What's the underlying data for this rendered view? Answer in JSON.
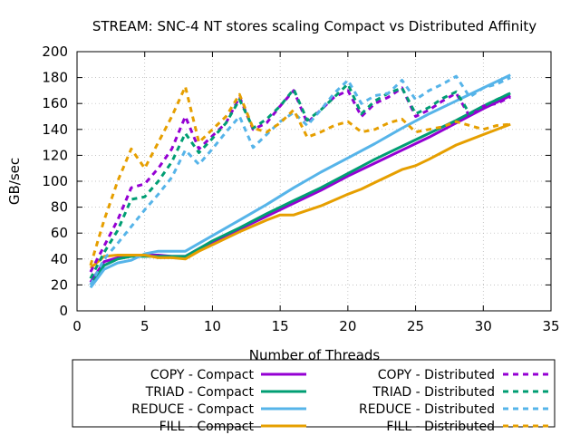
{
  "chart_data": {
    "type": "line",
    "title": "STREAM: SNC-4 NT stores scaling Compact vs Distributed Affinity",
    "xlabel": "Number of Threads",
    "ylabel": "GB/sec",
    "xlim": [
      0,
      35
    ],
    "ylim": [
      0,
      200
    ],
    "xticks": [
      0,
      5,
      10,
      15,
      20,
      25,
      30,
      35
    ],
    "yticks": [
      0,
      20,
      40,
      60,
      80,
      100,
      120,
      140,
      160,
      180,
      200
    ],
    "grid": true,
    "legend_position": "bottom",
    "series": [
      {
        "name": "COPY - Compact",
        "color": "#9400d3",
        "style": "solid",
        "x": [
          1,
          2,
          3,
          4,
          5,
          6,
          7,
          8,
          9,
          10,
          12,
          14,
          16,
          18,
          20,
          22,
          24,
          26,
          28,
          30,
          32
        ],
        "y": [
          22,
          38,
          41,
          43,
          43,
          43,
          42,
          42,
          48,
          53,
          63,
          73,
          83,
          93,
          104,
          114,
          124,
          134,
          145,
          156,
          166
        ]
      },
      {
        "name": "TRIAD - Compact",
        "color": "#009e73",
        "style": "solid",
        "x": [
          1,
          2,
          3,
          4,
          5,
          6,
          7,
          8,
          9,
          10,
          12,
          14,
          16,
          18,
          20,
          22,
          24,
          26,
          28,
          30,
          32
        ],
        "y": [
          20,
          35,
          40,
          42,
          42,
          42,
          42,
          42,
          48,
          54,
          64,
          75,
          85,
          95,
          106,
          117,
          127,
          137,
          147,
          158,
          168
        ]
      },
      {
        "name": "REDUCE - Compact",
        "color": "#56b4e9",
        "style": "solid",
        "x": [
          1,
          2,
          3,
          4,
          5,
          6,
          7,
          8,
          9,
          10,
          12,
          14,
          16,
          18,
          20,
          22,
          24,
          26,
          28,
          30,
          32
        ],
        "y": [
          18,
          32,
          37,
          39,
          44,
          46,
          46,
          46,
          52,
          58,
          70,
          82,
          95,
          107,
          118,
          129,
          141,
          152,
          162,
          172,
          182
        ]
      },
      {
        "name": "FILL - Compact",
        "color": "#e69f00",
        "style": "solid",
        "x": [
          1,
          2,
          3,
          4,
          5,
          6,
          7,
          8,
          9,
          10,
          12,
          14,
          15,
          16,
          18,
          20,
          21,
          22,
          24,
          25,
          26,
          28,
          30,
          32
        ],
        "y": [
          33,
          42,
          43,
          43,
          43,
          41,
          41,
          40,
          46,
          51,
          61,
          70,
          74,
          74,
          81,
          90,
          94,
          99,
          109,
          112,
          117,
          128,
          136,
          144
        ]
      },
      {
        "name": "COPY - Distributed",
        "color": "#9400d3",
        "style": "dashed",
        "x": [
          1,
          2,
          3,
          4,
          5,
          6,
          7,
          8,
          9,
          10,
          11,
          12,
          13,
          14,
          15,
          16,
          17,
          18,
          19,
          20,
          21,
          22,
          23,
          24,
          25,
          26,
          27,
          28,
          29,
          30,
          31,
          32
        ],
        "y": [
          30,
          50,
          70,
          95,
          98,
          110,
          125,
          150,
          125,
          135,
          145,
          165,
          140,
          145,
          158,
          170,
          145,
          155,
          165,
          170,
          150,
          160,
          165,
          172,
          150,
          155,
          162,
          168,
          150,
          158,
          160,
          165
        ]
      },
      {
        "name": "TRIAD - Distributed",
        "color": "#009e73",
        "style": "dashed",
        "x": [
          1,
          2,
          3,
          4,
          5,
          6,
          7,
          8,
          9,
          10,
          11,
          12,
          13,
          14,
          15,
          16,
          17,
          18,
          19,
          20,
          21,
          22,
          23,
          24,
          25,
          26,
          27,
          28,
          29,
          30,
          31,
          32
        ],
        "y": [
          25,
          45,
          62,
          86,
          88,
          100,
          115,
          137,
          122,
          133,
          145,
          163,
          141,
          148,
          158,
          171,
          147,
          155,
          165,
          175,
          152,
          162,
          168,
          172,
          152,
          157,
          164,
          169,
          152,
          158,
          163,
          168
        ]
      },
      {
        "name": "REDUCE - Distributed",
        "color": "#56b4e9",
        "style": "dashed",
        "x": [
          1,
          2,
          3,
          4,
          5,
          6,
          7,
          8,
          9,
          10,
          11,
          12,
          13,
          14,
          15,
          16,
          17,
          18,
          19,
          20,
          21,
          22,
          23,
          24,
          25,
          26,
          27,
          28,
          29,
          30,
          31,
          32
        ],
        "y": [
          20,
          40,
          52,
          65,
          78,
          90,
          103,
          124,
          113,
          125,
          138,
          150,
          126,
          136,
          146,
          153,
          143,
          155,
          168,
          178,
          160,
          166,
          168,
          178,
          163,
          170,
          175,
          181,
          165,
          172,
          175,
          180
        ]
      },
      {
        "name": "FILL - Distributed",
        "color": "#e69f00",
        "style": "dashed",
        "x": [
          1,
          2,
          3,
          4,
          5,
          6,
          7,
          8,
          9,
          10,
          11,
          12,
          13,
          14,
          15,
          16,
          17,
          18,
          19,
          20,
          21,
          22,
          23,
          24,
          25,
          26,
          27,
          28,
          29,
          30,
          31,
          32
        ],
        "y": [
          35,
          70,
          100,
          125,
          110,
          130,
          150,
          173,
          130,
          140,
          150,
          167,
          141,
          138,
          145,
          155,
          134,
          138,
          143,
          146,
          138,
          140,
          145,
          148,
          138,
          140,
          142,
          146,
          143,
          140,
          143,
          144
        ]
      }
    ]
  }
}
